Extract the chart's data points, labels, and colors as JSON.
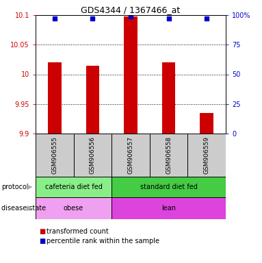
{
  "title": "GDS4344 / 1367466_at",
  "samples": [
    "GSM906555",
    "GSM906556",
    "GSM906557",
    "GSM906558",
    "GSM906559"
  ],
  "bar_values": [
    10.02,
    10.015,
    10.098,
    10.02,
    9.935
  ],
  "percentile_values": [
    97,
    97,
    99,
    97,
    97
  ],
  "ymin": 9.9,
  "ymax": 10.1,
  "yticks": [
    9.9,
    9.95,
    10.0,
    10.05,
    10.1
  ],
  "ytick_labels": [
    "9.9",
    "9.95",
    "10",
    "10.05",
    "10.1"
  ],
  "right_yticks": [
    0,
    25,
    50,
    75,
    100
  ],
  "right_ytick_labels": [
    "0",
    "25",
    "50",
    "75",
    "100%"
  ],
  "bar_color": "#cc0000",
  "dot_color": "#0000cc",
  "protocol_groups": [
    {
      "label": "cafeteria diet fed",
      "start": 0,
      "end": 2,
      "color": "#88ee88"
    },
    {
      "label": "standard diet fed",
      "start": 2,
      "end": 5,
      "color": "#44cc44"
    }
  ],
  "disease_groups": [
    {
      "label": "obese",
      "start": 0,
      "end": 2,
      "color": "#f0a0f0"
    },
    {
      "label": "lean",
      "start": 2,
      "end": 5,
      "color": "#dd44dd"
    }
  ],
  "bar_width": 0.35,
  "background_color": "#ffffff",
  "sample_box_color": "#cccccc",
  "label_arrow_color": "#aaaaaa"
}
